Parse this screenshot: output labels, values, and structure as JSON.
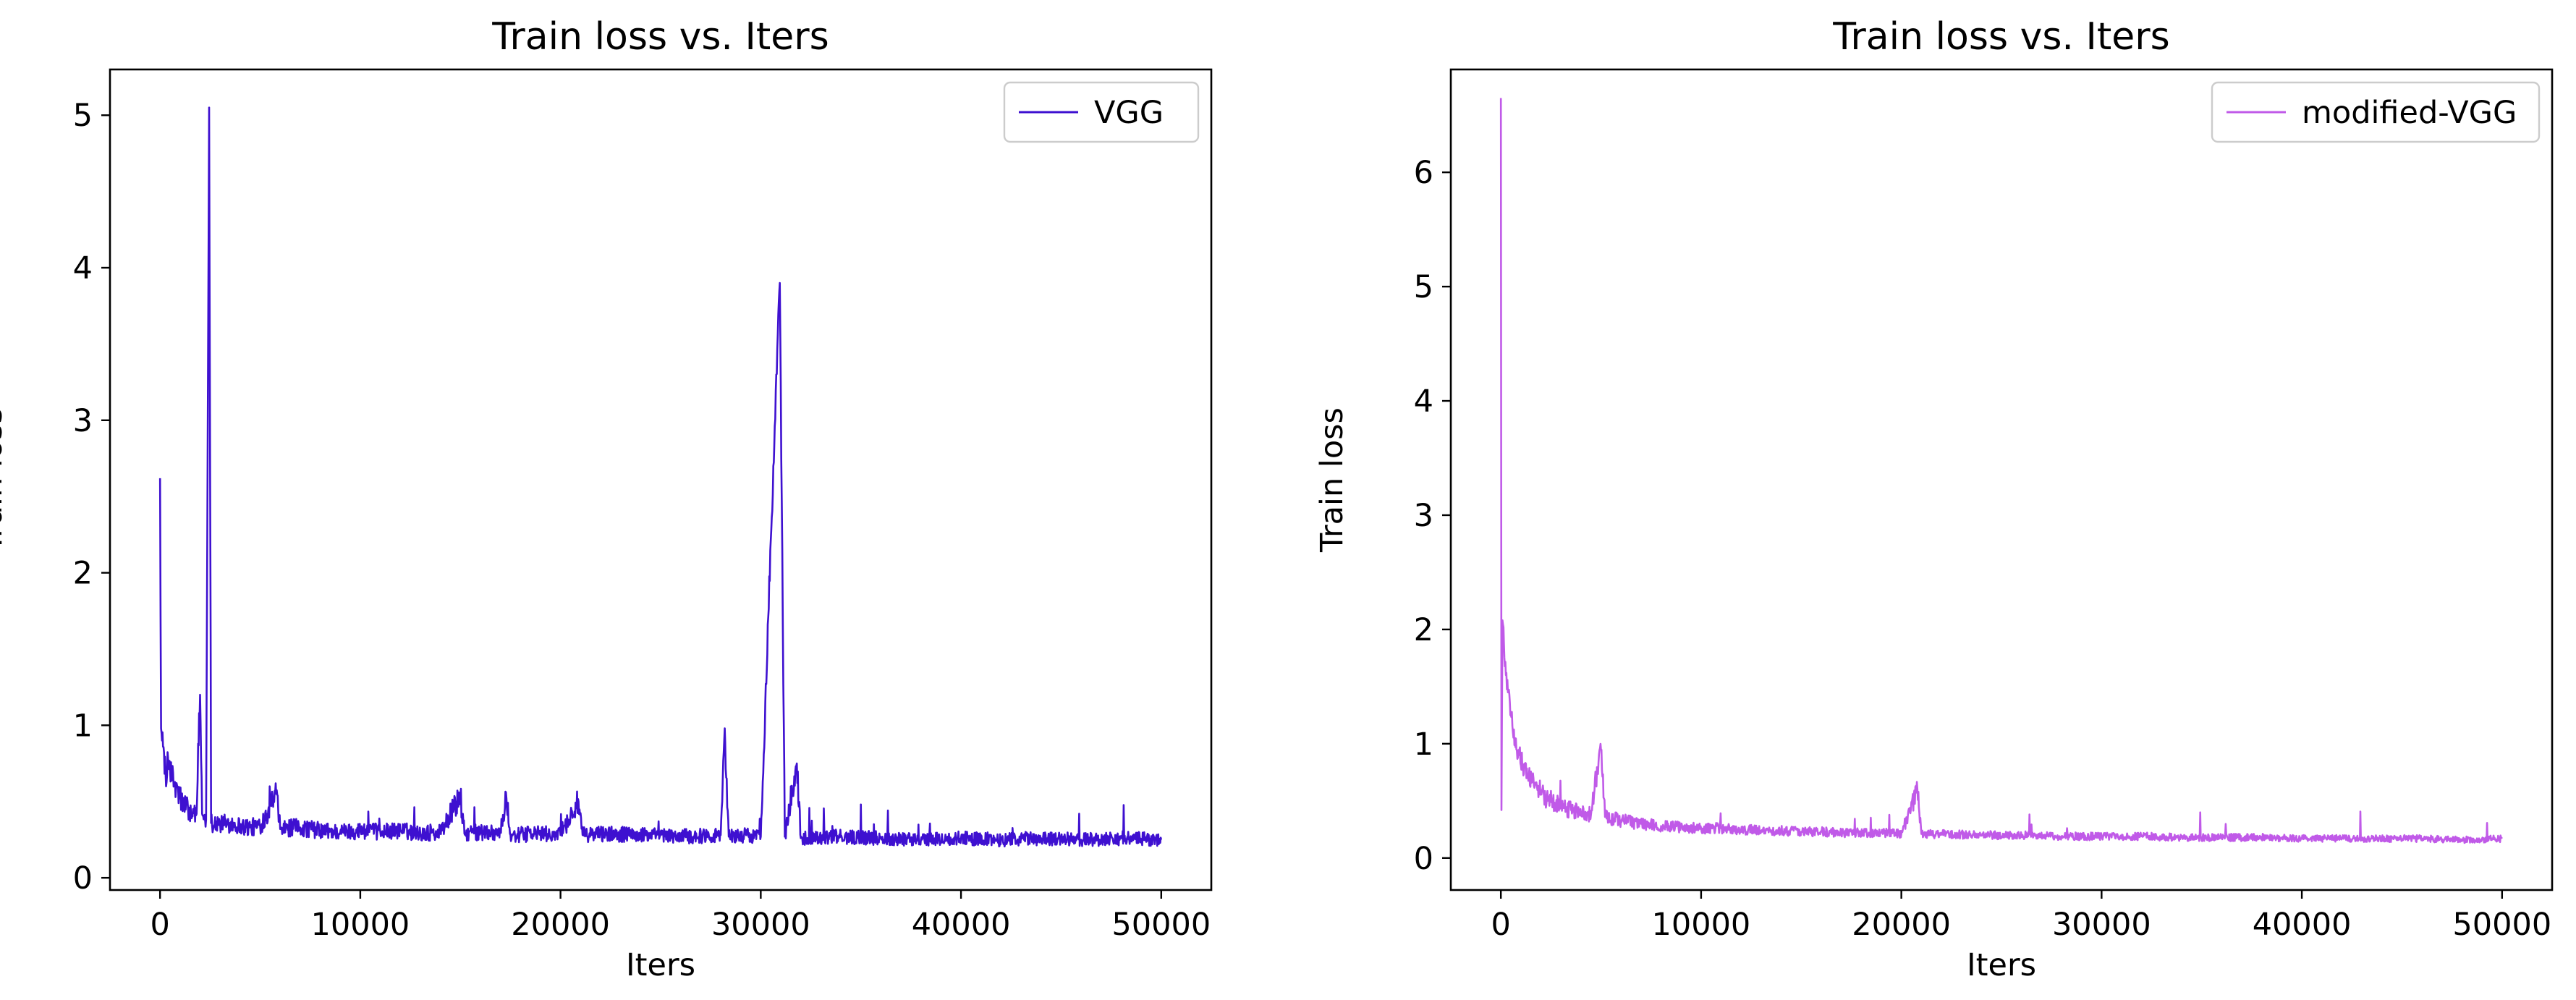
{
  "figure": {
    "background": "#ffffff"
  },
  "chart_data": [
    {
      "type": "line",
      "title": "Train loss  vs. Iters",
      "xlabel": "Iters",
      "ylabel": "Train loss",
      "xlim": [
        -2500,
        52500
      ],
      "ylim": [
        -0.08,
        5.3
      ],
      "xticks": [
        0,
        10000,
        20000,
        30000,
        40000,
        50000
      ],
      "yticks": [
        0,
        1,
        2,
        3,
        4,
        5
      ],
      "grid": false,
      "legend_position": "top-right",
      "series": [
        {
          "name": "VGG",
          "color": "#3e10d0",
          "points": [
            [
              0,
              2.62
            ],
            [
              50,
              0.98
            ],
            [
              100,
              0.9
            ],
            [
              200,
              0.82
            ],
            [
              300,
              0.6
            ],
            [
              400,
              0.78
            ],
            [
              500,
              0.72
            ],
            [
              600,
              0.66
            ],
            [
              700,
              0.62
            ],
            [
              800,
              0.58
            ],
            [
              1000,
              0.52
            ],
            [
              1200,
              0.48
            ],
            [
              1400,
              0.45
            ],
            [
              1600,
              0.42
            ],
            [
              1800,
              0.41
            ],
            [
              2000,
              1.2
            ],
            [
              2100,
              0.42
            ],
            [
              2300,
              0.38
            ],
            [
              2450,
              5.05
            ],
            [
              2550,
              0.36
            ],
            [
              2800,
              0.37
            ],
            [
              3000,
              0.35
            ],
            [
              3500,
              0.36
            ],
            [
              4000,
              0.34
            ],
            [
              4500,
              0.33
            ],
            [
              5000,
              0.34
            ],
            [
              5800,
              0.55
            ],
            [
              6000,
              0.32
            ],
            [
              7000,
              0.33
            ],
            [
              8000,
              0.31
            ],
            [
              9000,
              0.3
            ],
            [
              10000,
              0.31
            ],
            [
              11000,
              0.3
            ],
            [
              12000,
              0.31
            ],
            [
              13000,
              0.29
            ],
            [
              14000,
              0.3
            ],
            [
              15000,
              0.53
            ],
            [
              15200,
              0.29
            ],
            [
              16000,
              0.3
            ],
            [
              17000,
              0.3
            ],
            [
              17300,
              0.52
            ],
            [
              17500,
              0.28
            ],
            [
              19000,
              0.29
            ],
            [
              20000,
              0.28
            ],
            [
              20900,
              0.5
            ],
            [
              21100,
              0.28
            ],
            [
              22000,
              0.29
            ],
            [
              24000,
              0.28
            ],
            [
              26000,
              0.27
            ],
            [
              28000,
              0.28
            ],
            [
              28200,
              0.98
            ],
            [
              28400,
              0.27
            ],
            [
              29000,
              0.28
            ],
            [
              30000,
              0.27
            ],
            [
              30950,
              3.9
            ],
            [
              31200,
              0.27
            ],
            [
              31800,
              0.75
            ],
            [
              32000,
              0.26
            ],
            [
              34000,
              0.27
            ],
            [
              36000,
              0.26
            ],
            [
              38000,
              0.25
            ],
            [
              40000,
              0.26
            ],
            [
              42000,
              0.25
            ],
            [
              44000,
              0.26
            ],
            [
              46000,
              0.25
            ],
            [
              48000,
              0.26
            ],
            [
              50000,
              0.25
            ]
          ]
        }
      ]
    },
    {
      "type": "line",
      "title": "Train loss  vs. Iters",
      "xlabel": "Iters",
      "ylabel": "Train loss",
      "xlim": [
        -2500,
        52500
      ],
      "ylim": [
        -0.28,
        6.9
      ],
      "xticks": [
        0,
        10000,
        20000,
        30000,
        40000,
        50000
      ],
      "yticks": [
        0,
        1,
        2,
        3,
        4,
        5,
        6
      ],
      "grid": false,
      "legend_position": "top-right",
      "series": [
        {
          "name": "modified-VGG",
          "color": "#c05ae8",
          "points": [
            [
              0,
              6.65
            ],
            [
              30,
              0.42
            ],
            [
              80,
              2.08
            ],
            [
              150,
              1.9
            ],
            [
              250,
              1.6
            ],
            [
              350,
              1.45
            ],
            [
              500,
              1.25
            ],
            [
              700,
              1.05
            ],
            [
              900,
              0.9
            ],
            [
              1100,
              0.82
            ],
            [
              1400,
              0.72
            ],
            [
              1700,
              0.64
            ],
            [
              2000,
              0.58
            ],
            [
              2300,
              0.52
            ],
            [
              2700,
              0.48
            ],
            [
              3000,
              0.45
            ],
            [
              3500,
              0.42
            ],
            [
              4000,
              0.4
            ],
            [
              4500,
              0.38
            ],
            [
              5000,
              0.95
            ],
            [
              5200,
              0.36
            ],
            [
              6000,
              0.33
            ],
            [
              7000,
              0.3
            ],
            [
              8000,
              0.28
            ],
            [
              9000,
              0.27
            ],
            [
              10000,
              0.26
            ],
            [
              11000,
              0.26
            ],
            [
              12000,
              0.25
            ],
            [
              13000,
              0.24
            ],
            [
              14000,
              0.24
            ],
            [
              15000,
              0.23
            ],
            [
              16000,
              0.23
            ],
            [
              17000,
              0.22
            ],
            [
              18000,
              0.22
            ],
            [
              19000,
              0.22
            ],
            [
              20000,
              0.21
            ],
            [
              20800,
              0.6
            ],
            [
              21000,
              0.21
            ],
            [
              22000,
              0.21
            ],
            [
              24000,
              0.2
            ],
            [
              26000,
              0.2
            ],
            [
              28000,
              0.19
            ],
            [
              30000,
              0.19
            ],
            [
              32000,
              0.19
            ],
            [
              34000,
              0.18
            ],
            [
              36000,
              0.18
            ],
            [
              38000,
              0.18
            ],
            [
              40000,
              0.17
            ],
            [
              42000,
              0.17
            ],
            [
              44000,
              0.17
            ],
            [
              46000,
              0.17
            ],
            [
              48000,
              0.16
            ],
            [
              50000,
              0.17
            ]
          ]
        }
      ]
    }
  ]
}
